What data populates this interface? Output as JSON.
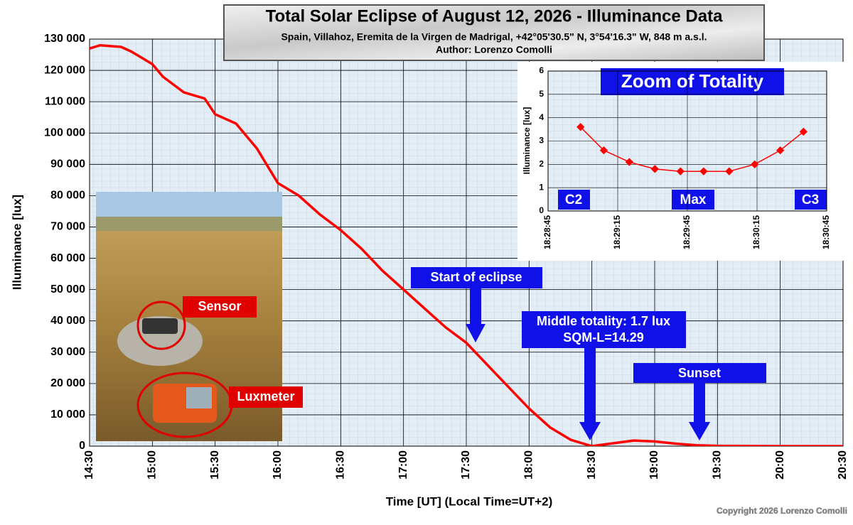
{
  "chart_data": [
    {
      "type": "line",
      "title": "Total Solar Eclipse of August 12, 2026 - Illuminance Data",
      "subtitle": "Spain, Villahoz, Eremita de la Virgen de Madrigal, +42°05'30.5\" N, 3°54'16.3\" W, 848 m a.s.l.",
      "author": "Author: Lorenzo Comolli",
      "x_label": "Time [UT]  (Local Time=UT+2)",
      "y_label": "Illuminance [lux]",
      "color": "#ff0000",
      "x": [
        "14:30",
        "14:35",
        "14:45",
        "14:50",
        "15:00",
        "15:05",
        "15:15",
        "15:25",
        "15:30",
        "15:40",
        "15:50",
        "16:00",
        "16:10",
        "16:20",
        "16:30",
        "16:40",
        "16:50",
        "17:00",
        "17:10",
        "17:20",
        "17:30",
        "17:40",
        "17:50",
        "18:00",
        "18:10",
        "18:20",
        "18:30",
        "18:40",
        "18:50",
        "19:00",
        "19:10",
        "19:20",
        "19:30",
        "19:45",
        "20:00",
        "20:30"
      ],
      "values": [
        127000,
        128000,
        127500,
        126000,
        122000,
        118000,
        113000,
        111000,
        106000,
        103000,
        95000,
        84000,
        80000,
        74000,
        69000,
        63000,
        56000,
        50000,
        44000,
        38000,
        33000,
        26000,
        19000,
        12000,
        6000,
        2000,
        0,
        900,
        1800,
        1500,
        800,
        300,
        100,
        50,
        10,
        0
      ],
      "xlim": [
        "14:30",
        "20:30"
      ],
      "xticks": [
        "14:30",
        "15:00",
        "15:30",
        "16:00",
        "16:30",
        "17:00",
        "17:30",
        "18:00",
        "18:30",
        "19:00",
        "19:30",
        "20:00",
        "20:30"
      ],
      "ylim": [
        0,
        130000
      ],
      "yticks": [
        0,
        {
          "value": 10000,
          "label": "10 000"
        },
        {
          "value": 20000,
          "label": "20 000"
        },
        {
          "value": 30000,
          "label": "30 000"
        },
        {
          "value": 40000,
          "label": "40 000"
        },
        {
          "value": 50000,
          "label": "50 000"
        },
        {
          "value": 60000,
          "label": "60 000"
        },
        {
          "value": 70000,
          "label": "70 000"
        },
        {
          "value": 80000,
          "label": "80 000"
        },
        {
          "value": 90000,
          "label": "90 000"
        },
        {
          "value": 100000,
          "label": "100 000"
        },
        {
          "value": 110000,
          "label": "110 000"
        },
        {
          "value": 120000,
          "label": "120 000"
        },
        {
          "value": 130000,
          "label": "130 000"
        }
      ],
      "grid": true,
      "annotations": [
        "Start of eclipse",
        "Middle totality: 1.7 lux",
        "SQM-L=14.29",
        "Sunset"
      ],
      "photo_labels": [
        "Sensor",
        "Luxmeter"
      ],
      "copyright": "Copyright 2026 Lorenzo Comolli"
    },
    {
      "type": "scatter-line",
      "title": "Zoom of Totality",
      "y_label": "Illuminance [lux]",
      "color": "#ff0000",
      "x": [
        "18:28:59",
        "18:29:09",
        "18:29:20",
        "18:29:31",
        "18:29:42",
        "18:29:52",
        "18:30:03",
        "18:30:14",
        "18:30:25",
        "18:30:35"
      ],
      "values": [
        3.6,
        2.6,
        2.1,
        1.8,
        1.7,
        1.7,
        1.7,
        2.0,
        2.6,
        3.4
      ],
      "xlim": [
        "18:28:45",
        "18:30:45"
      ],
      "xticks": [
        "18:28:45",
        "18:29:15",
        "18:29:45",
        "18:30:15",
        "18:30:45"
      ],
      "ylim": [
        0,
        6
      ],
      "yticks": [
        0,
        1,
        2,
        3,
        4,
        5,
        6
      ],
      "grid": true,
      "annotations": [
        "C2",
        "Max",
        "C3"
      ]
    }
  ]
}
